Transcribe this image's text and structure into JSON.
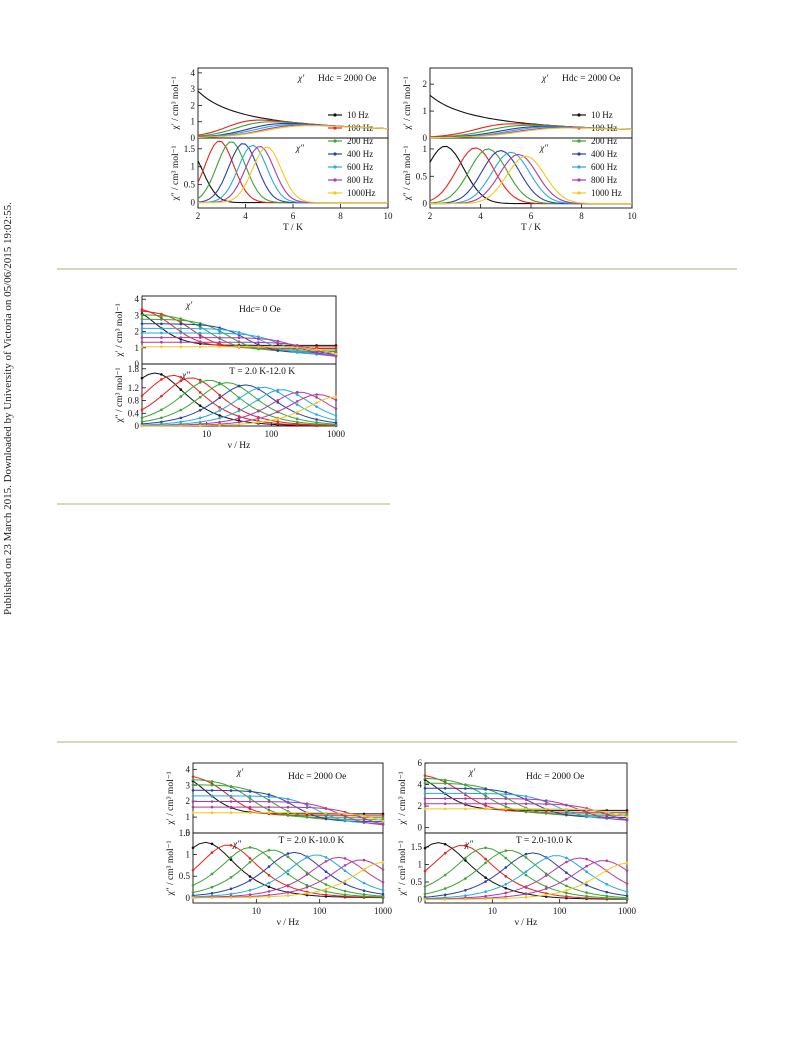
{
  "side_note": "Published on 23 March 2015. Downloaded by University of Victoria on 05/06/2015 19:02:55.",
  "legend_freqs": [
    "10 Hz",
    "100 Hz",
    "200 Hz",
    "400 Hz",
    "600 Hz",
    "800 Hz",
    "1000 Hz"
  ],
  "legend_freqs_alt": [
    "10 Hz",
    "100 Hz",
    "200 Hz",
    "400 Hz",
    "600 Hz",
    "800 Hz",
    "1000Hz"
  ],
  "colors": [
    "#111111",
    "#e8241c",
    "#3aa435",
    "#2c3fa8",
    "#2aa8e0",
    "#b03aa8",
    "#f2c81c"
  ],
  "chart_data": [
    {
      "type": "line",
      "panel": "fig1-left",
      "top": {
        "label": "χ′",
        "ylabel": "χ′ / cm³ mol⁻¹",
        "field": "Hdc = 2000 Oe",
        "ylim": [
          0,
          4.3
        ],
        "yticks": [
          0,
          1,
          2,
          3,
          4
        ]
      },
      "bottom": {
        "label": "χ″",
        "ylabel": "χ″ / cm³ mol⁻¹",
        "ylim": [
          -0.15,
          1.8
        ],
        "yticks": [
          0.0,
          0.5,
          1.0,
          1.5
        ]
      },
      "xlabel": "T / K",
      "xlim": [
        2,
        10
      ],
      "xticks": [
        2,
        4,
        6,
        8,
        10
      ],
      "series_names": "legend_freqs_alt",
      "chi1": {
        "low": 4.15,
        "t_step": [
          2.6,
          3.5,
          3.9,
          4.4,
          4.7,
          5.0,
          5.2
        ],
        "widths": [
          0.45,
          0.55,
          0.6,
          0.65,
          0.7,
          0.7,
          0.75
        ],
        "high_a": 7.2,
        "high_b": 0.25
      },
      "chi2": {
        "peak_t": [
          1.6,
          2.9,
          3.4,
          3.9,
          4.3,
          4.6,
          4.9
        ],
        "peak_v": [
          1.45,
          1.72,
          1.7,
          1.65,
          1.6,
          1.57,
          1.55
        ],
        "width": 0.85
      }
    },
    {
      "type": "line",
      "panel": "fig1-right",
      "top": {
        "label": "χ′",
        "ylabel": "χ′ / cm³ mol⁻¹",
        "field": "Hdc = 2000 Oe",
        "ylim": [
          0,
          2.6
        ],
        "yticks": [
          0,
          1,
          2
        ]
      },
      "bottom": {
        "label": "χ″",
        "ylabel": "χ″ / cm³ mol⁻¹",
        "ylim": [
          -0.08,
          1.2
        ],
        "yticks": [
          0.0,
          0.5,
          1.0
        ]
      },
      "xlabel": "T / K",
      "xlim": [
        2,
        10
      ],
      "xticks": [
        2,
        4,
        6,
        8,
        10
      ],
      "series_names": "legend_freqs",
      "chi1": {
        "low": 2.3,
        "t_step": [
          3.0,
          4.1,
          4.6,
          5.1,
          5.4,
          5.7,
          5.9
        ],
        "widths": [
          0.55,
          0.6,
          0.65,
          0.7,
          0.7,
          0.75,
          0.8
        ],
        "high_a": 4.6,
        "high_b": 0.45
      },
      "chi2": {
        "peak_t": [
          2.6,
          3.8,
          4.3,
          4.8,
          5.2,
          5.5,
          5.8
        ],
        "peak_v": [
          1.05,
          1.02,
          1.0,
          0.97,
          0.94,
          0.9,
          0.87
        ],
        "width": 1.05
      }
    },
    {
      "type": "line",
      "panel": "fig2",
      "top": {
        "label": "χ′",
        "ylabel": "χ′ / cm³ mol⁻¹",
        "field": "Hdc= 0 Oe",
        "ylim": [
          0,
          4.2
        ],
        "yticks": [
          0,
          1,
          2,
          3,
          4
        ]
      },
      "bottom": {
        "label": "χ″",
        "ylabel": "χ″ / cm³ mol⁻¹",
        "temp_range": "T = 2.0 K-12.0 K",
        "ylim": [
          0,
          1.95
        ],
        "yticks": [
          0.0,
          0.4,
          0.8,
          1.2,
          1.8
        ]
      },
      "xlabel": "ν / Hz",
      "xlim": [
        1,
        1000
      ],
      "log": true,
      "xticks": [
        10,
        100,
        1000
      ],
      "curves": 11
    },
    {
      "type": "line",
      "panel": "fig3-left",
      "top": {
        "label": "χ′",
        "ylabel": "χ′ / cm³ mol⁻¹",
        "field": "Hdc = 2000 Oe",
        "ylim": [
          0,
          4.4
        ],
        "yticks": [
          0,
          1,
          2,
          3,
          4
        ]
      },
      "bottom": {
        "label": "χ″",
        "ylabel": "χ″ / cm³ mol⁻¹",
        "temp_range": "T = 2.0 K-10.0 K",
        "ylim": [
          -0.12,
          1.5
        ],
        "yticks": [
          0.0,
          0.5,
          1.0,
          1.5
        ]
      },
      "xlabel": "ν / Hz",
      "xlim": [
        1,
        1000
      ],
      "log": true,
      "xticks": [
        10,
        100,
        1000
      ],
      "curves": 9
    },
    {
      "type": "line",
      "panel": "fig3-right",
      "top": {
        "label": "χ′",
        "ylabel": "χ′ / cm³ mol⁻¹",
        "field": "Hdc = 2000 Oe",
        "ylim": [
          -0.5,
          6
        ],
        "yticks": [
          0,
          2,
          4,
          6
        ]
      },
      "bottom": {
        "label": "χ″",
        "ylabel": "χ″ / cm³ mol⁻¹",
        "temp_range": "T = 2.0-10.0 K",
        "ylim": [
          -0.1,
          1.9
        ],
        "yticks": [
          0.0,
          0.5,
          1.0,
          1.5
        ]
      },
      "xlabel": "ν / Hz",
      "xlim": [
        1,
        1000
      ],
      "log": true,
      "xticks": [
        10,
        100,
        1000
      ],
      "curves": 9
    }
  ]
}
